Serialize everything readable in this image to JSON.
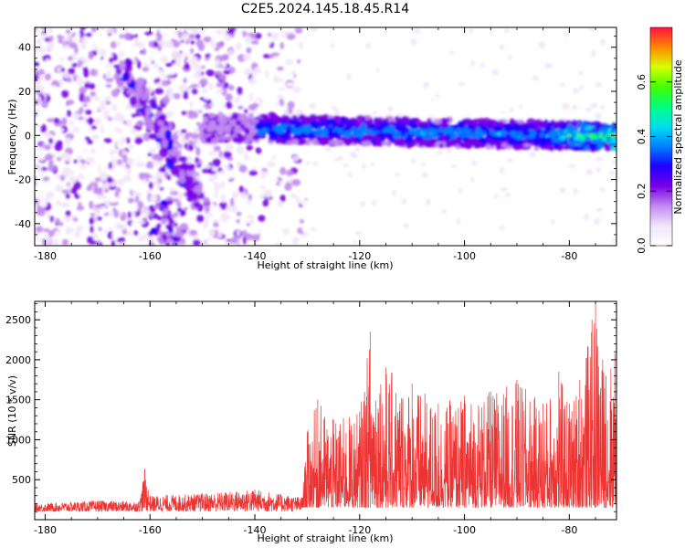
{
  "figure": {
    "title": "C2E5.2024.145.18.45.R14"
  },
  "chart_data": [
    {
      "type": "heatmap",
      "xlabel": "Height of straight line (km)",
      "ylabel": "Frequency (Hz)",
      "xlim": [
        -182,
        -71
      ],
      "ylim": [
        -50,
        49
      ],
      "xticks": [
        -180,
        -160,
        -140,
        -120,
        -100,
        -80
      ],
      "yticks": [
        -40,
        -20,
        0,
        20,
        40
      ],
      "colorbar": {
        "label": "Normalized spectral amplitude",
        "range": [
          0.0,
          0.8
        ],
        "ticks": [
          0.0,
          0.2,
          0.4,
          0.6
        ],
        "colormap": [
          "#ffffff",
          "#f2e6fa",
          "#c08af0",
          "#7a00e6",
          "#1e00ff",
          "#0080ff",
          "#00e0f0",
          "#00ff80",
          "#40ff00",
          "#d8ff00",
          "#ff8800",
          "#ff1040"
        ]
      },
      "features": [
        {
          "description": "main band",
          "x": [
            -140,
            -71
          ],
          "frequency": [
            -5,
            6
          ]
        },
        {
          "description": "diagonal streak",
          "x": [
            -165,
            -150
          ],
          "frequency": [
            30,
            -30
          ]
        }
      ]
    },
    {
      "type": "line",
      "xlabel": "Height of straight line (km)",
      "ylabel": "SNR (10 * v/v)",
      "xlim": [
        -182,
        -71
      ],
      "ylim": [
        0,
        2730
      ],
      "xticks": [
        -180,
        -160,
        -140,
        -120,
        -100,
        -80
      ],
      "yticks": [
        500,
        1000,
        1500,
        2000,
        2500
      ],
      "line_color": "#ee3333",
      "series": [
        {
          "x": [
            -182,
            -170,
            -162,
            -161,
            -160,
            -150,
            -140,
            -131,
            -130,
            -128,
            -125,
            -120,
            -118,
            -115,
            -110,
            -105,
            -100,
            -95,
            -90,
            -85,
            -82,
            -80,
            -78,
            -75,
            -73,
            -71
          ],
          "y": [
            200,
            240,
            230,
            640,
            300,
            330,
            380,
            280,
            1100,
            1500,
            1250,
            1350,
            2350,
            1900,
            1700,
            1450,
            1550,
            1600,
            1750,
            1450,
            1850,
            1450,
            1750,
            2730,
            1800,
            2300
          ]
        }
      ]
    }
  ]
}
